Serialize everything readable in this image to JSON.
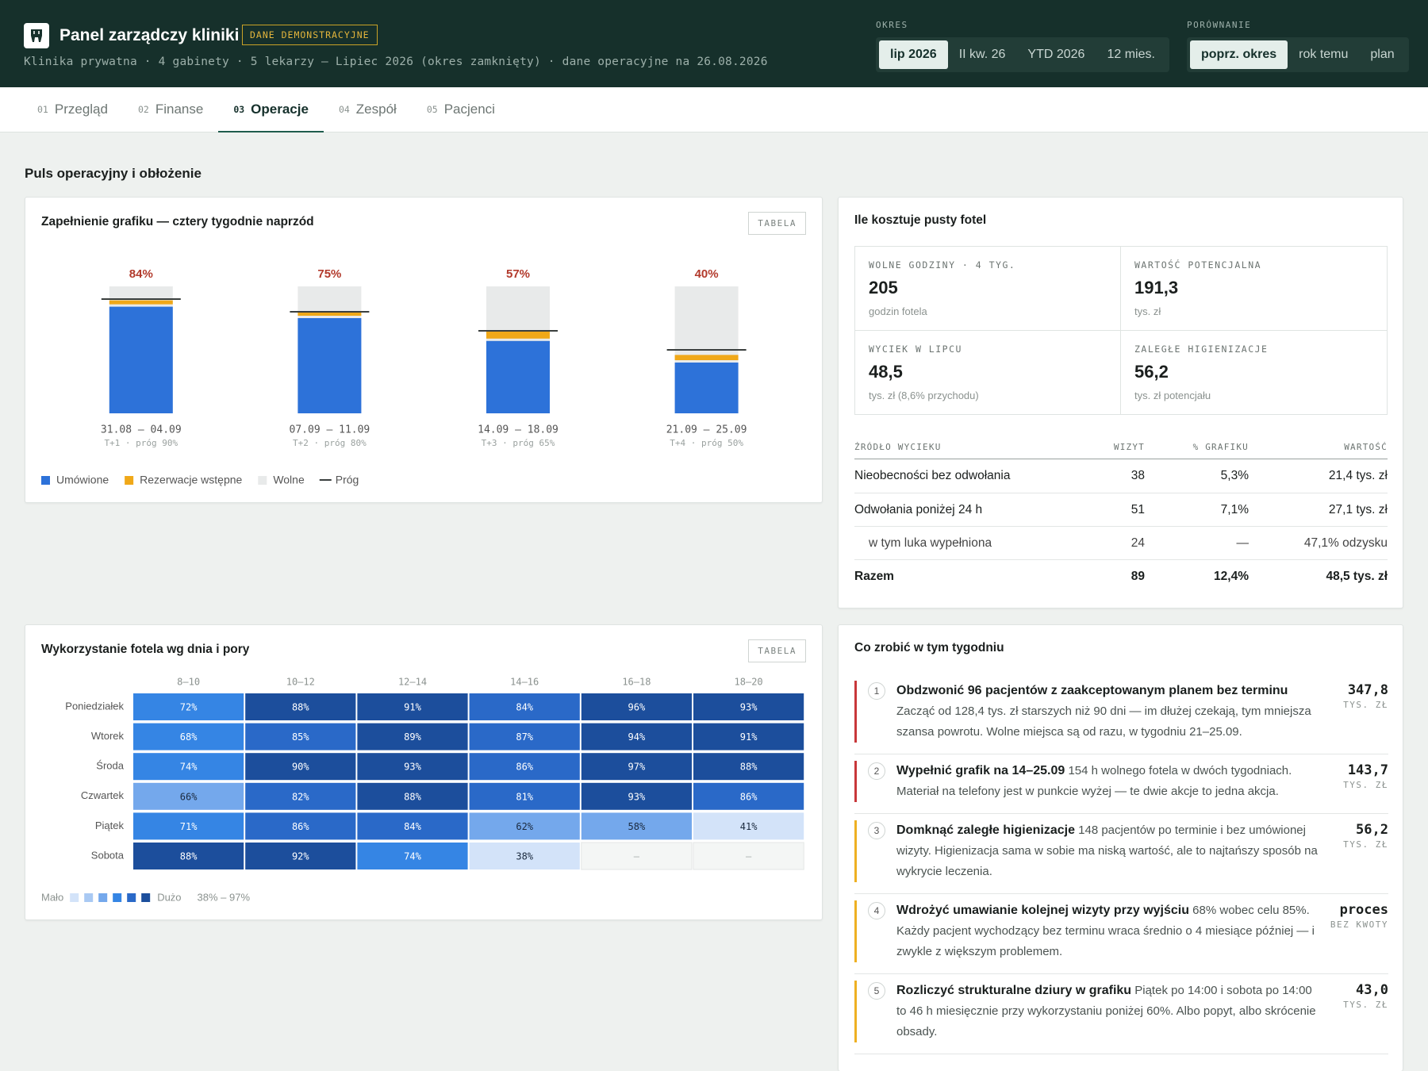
{
  "header": {
    "title": "Panel zarządczy kliniki",
    "badge": "DANE DEMONSTRACYJNE",
    "subtitle": "Klinika prywatna · 4 gabinety · 5 lekarzy — Lipiec 2026 (okres zamknięty) · dane operacyjne na 26.08.2026"
  },
  "period": {
    "label": "OKRES",
    "options": [
      "lip 2026",
      "II kw. 26",
      "YTD 2026",
      "12 mies."
    ],
    "selected": 0
  },
  "comparison": {
    "label": "PORÓWNANIE",
    "options": [
      "poprz. okres",
      "rok temu",
      "plan"
    ],
    "selected": 0
  },
  "tabs": {
    "items": [
      {
        "number": "01",
        "label": "Przegląd"
      },
      {
        "number": "02",
        "label": "Finanse"
      },
      {
        "number": "03",
        "label": "Operacje"
      },
      {
        "number": "04",
        "label": "Zespół"
      },
      {
        "number": "05",
        "label": "Pacjenci"
      }
    ],
    "active": 2
  },
  "section_title": "Puls operacyjny i obłożenie",
  "schedule_chart": {
    "type": "bar",
    "title": "Zapełnienie grafiku — cztery tygodnie naprzód",
    "button": "TABELA",
    "categories": [
      "31.08 – 04.09",
      "07.09 – 11.09",
      "14.09 – 18.09",
      "21.09 – 25.09"
    ],
    "sublabels": [
      "T+1 · próg 90%",
      "T+2 · próg 80%",
      "T+3 · próg 65%",
      "T+4 · próg 50%"
    ],
    "ylim": [
      0,
      100
    ],
    "series": [
      {
        "name": "Umówione",
        "color": "#2d72d9",
        "values": [
          84,
          75,
          57,
          40
        ],
        "value_labels": [
          "84%",
          "75%",
          "57%",
          "40%"
        ]
      },
      {
        "name": "Rezerwacje wstępne",
        "color": "#f0a818",
        "values": [
          5,
          5,
          8,
          6
        ]
      }
    ],
    "free": {
      "name": "Wolne",
      "color": "#e8eaea"
    },
    "threshold": {
      "name": "Próg",
      "color": "#3a3f3e",
      "values": [
        90,
        80,
        65,
        50
      ]
    },
    "value_label_color": "#b23a2c"
  },
  "empty_chair": {
    "title": "Ile kosztuje pusty fotel",
    "kpis": [
      {
        "label": "WOLNE GODZINY · 4 TYG.",
        "value": "205",
        "unit": "godzin fotela"
      },
      {
        "label": "WARTOŚĆ POTENCJALNA",
        "value": "191,3",
        "unit": "tys. zł"
      },
      {
        "label": "WYCIEK W LIPCU",
        "value": "48,5",
        "unit": "tys. zł (8,6% przychodu)"
      },
      {
        "label": "ZALEGŁE HIGIENIZACJE",
        "value": "56,2",
        "unit": "tys. zł potencjału"
      }
    ],
    "table": {
      "headers": [
        "ŹRÓDŁO WYCIEKU",
        "WIZYT",
        "% GRAFIKU",
        "WARTOŚĆ"
      ],
      "rows": [
        [
          "Nieobecności bez odwołania",
          "38",
          "5,3%",
          "21,4 tys. zł"
        ],
        [
          "Odwołania poniżej 24 h",
          "51",
          "7,1%",
          "27,1 tys. zł"
        ],
        [
          "w tym luka wypełniona",
          "24",
          "—",
          "47,1% odzysku"
        ],
        [
          "Razem",
          "89",
          "12,4%",
          "48,5 tys. zł"
        ]
      ]
    }
  },
  "heatmap": {
    "type": "heatmap",
    "title": "Wykorzystanie fotela wg dnia i pory",
    "button": "TABELA",
    "columns": [
      "8–10",
      "10–12",
      "12–14",
      "14–16",
      "16–18",
      "18–20"
    ],
    "rows": [
      {
        "name": "Poniedziałek",
        "values": [
          72,
          88,
          91,
          84,
          96,
          93
        ],
        "value_labels": [
          "72%",
          "88%",
          "91%",
          "84%",
          "96%",
          "93%"
        ]
      },
      {
        "name": "Wtorek",
        "values": [
          68,
          85,
          89,
          87,
          94,
          91
        ],
        "value_labels": [
          "68%",
          "85%",
          "89%",
          "87%",
          "94%",
          "91%"
        ]
      },
      {
        "name": "Środa",
        "values": [
          74,
          90,
          93,
          86,
          97,
          88
        ],
        "value_labels": [
          "74%",
          "90%",
          "93%",
          "86%",
          "97%",
          "88%"
        ]
      },
      {
        "name": "Czwartek",
        "values": [
          66,
          82,
          88,
          81,
          93,
          86
        ],
        "value_labels": [
          "66%",
          "82%",
          "88%",
          "81%",
          "93%",
          "86%"
        ]
      },
      {
        "name": "Piątek",
        "values": [
          71,
          86,
          84,
          62,
          58,
          41
        ],
        "value_labels": [
          "71%",
          "86%",
          "84%",
          "62%",
          "58%",
          "41%"
        ]
      },
      {
        "name": "Sobota",
        "values": [
          88,
          92,
          74,
          38,
          null,
          null
        ],
        "value_labels": [
          "88%",
          "92%",
          "74%",
          "38%",
          "–",
          "–"
        ]
      }
    ],
    "range": [
      38,
      97
    ],
    "legend": {
      "low": "Mało",
      "high": "Dużo",
      "range_label": "38% – 97%"
    },
    "colors": [
      "#d3e3f9",
      "#a9c9f3",
      "#74a8ec",
      "#3585e4",
      "#2a69c8",
      "#1c4e9c"
    ]
  },
  "actions": {
    "title": "Co zrobić w tym tygodniu",
    "items": [
      {
        "number": "1",
        "title": "Obdzwonić 96 pacjentów z zaakceptowanym planem bez terminu",
        "body": "Zacząć od 128,4 tys. zł starszych niż 90 dni — im dłużej czekają, tym mniejsza szansa powrotu. Wolne miejsca są od razu, w tygodniu 21–25.09.",
        "amount": "347,8",
        "unit": "TYS. ZŁ",
        "color": "#c8373a"
      },
      {
        "number": "2",
        "title": "Wypełnić grafik na 14–25.09",
        "body": "154 h wolnego fotela w dwóch tygodniach. Materiał na telefony jest w punkcie wyżej — te dwie akcje to jedna akcja.",
        "amount": "143,7",
        "unit": "TYS. ZŁ",
        "color": "#c8373a"
      },
      {
        "number": "3",
        "title": "Domknąć zaległe higienizacje",
        "body": "148 pacjentów po terminie i bez umówionej wizyty. Higienizacja sama w sobie ma niską wartość, ale to najtańszy sposób na wykrycie leczenia.",
        "amount": "56,2",
        "unit": "TYS. ZŁ",
        "color": "#eeb022"
      },
      {
        "number": "4",
        "title": "Wdrożyć umawianie kolejnej wizyty przy wyjściu",
        "body": "68% wobec celu 85%. Każdy pacjent wychodzący bez terminu wraca średnio o 4 miesiące później — i zwykle z większym problemem.",
        "amount": "proces",
        "unit": "BEZ KWOTY",
        "color": "#eeb022"
      },
      {
        "number": "5",
        "title": "Rozliczyć strukturalne dziury w grafiku",
        "body": "Piątek po 14:00 i sobota po 14:00 to 46 h miesięcznie przy wykorzystaniu poniżej 60%. Albo popyt, albo skrócenie obsady.",
        "amount": "43,0",
        "unit": "TYS. ZŁ",
        "color": "#eeb022"
      }
    ]
  }
}
